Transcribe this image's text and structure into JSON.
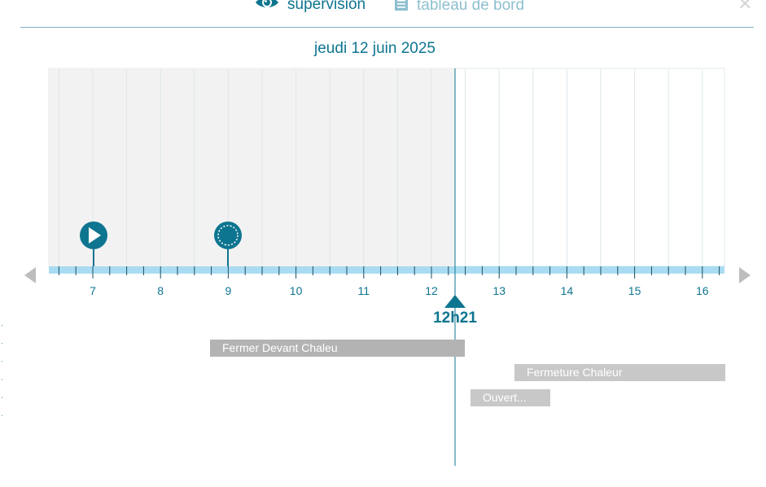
{
  "tabs": [
    {
      "label": "supervision",
      "icon": "eye-icon",
      "active": true
    },
    {
      "label": "tableau de bord",
      "icon": "document-icon",
      "active": false
    }
  ],
  "date_title": "jeudi 12 juin 2025",
  "timeline": {
    "hours": [
      "7",
      "8",
      "9",
      "10",
      "11",
      "12",
      "13",
      "14",
      "15",
      "16"
    ],
    "now_label": "12h21",
    "markers": [
      {
        "name": "play-marker-icon"
      },
      {
        "name": "clock-marker-icon"
      }
    ]
  },
  "events": [
    {
      "label": "Fermer Devant Chaleu"
    },
    {
      "label": "Fermeture Chaleur"
    },
    {
      "label": "Ouvert..."
    }
  ],
  "colors": {
    "accent": "#0e7590",
    "past_area": "#f2f2f2",
    "axis_band": "#a9dcf2",
    "event_bar": "#c8c8c8"
  }
}
